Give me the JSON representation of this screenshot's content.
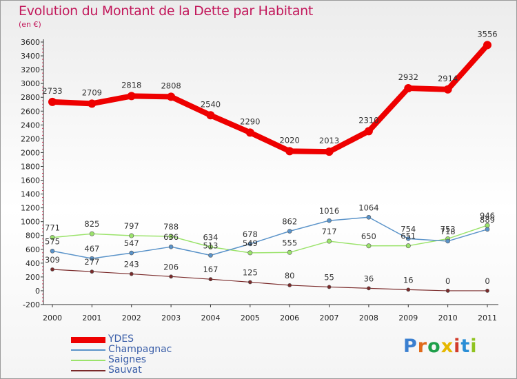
{
  "title": "Evolution du Montant de la Dette par Habitant",
  "subtitle": "(en €)",
  "logo": {
    "text": "Proxiti",
    "colors": [
      "#3a7fd0",
      "#e06a1a",
      "#1f9f4a",
      "#e6b800",
      "#d23b2a",
      "#2a8ed6",
      "#8fc31f"
    ]
  },
  "chart_data": {
    "type": "line",
    "x": [
      "2000",
      "2001",
      "2002",
      "2003",
      "2004",
      "2005",
      "2006",
      "2007",
      "2008",
      "2009",
      "2010",
      "2011"
    ],
    "ylim": [
      -200,
      3600
    ],
    "yticks": [
      -200,
      0,
      200,
      400,
      600,
      800,
      1000,
      1200,
      1400,
      1600,
      1800,
      2000,
      2200,
      2400,
      2600,
      2800,
      3000,
      3200,
      3400,
      3600
    ],
    "grid": false,
    "legend_position": "bottom-left",
    "series": [
      {
        "name": "YDES",
        "color": "#ee0000",
        "values": [
          2733,
          2709,
          2818,
          2808,
          2540,
          2290,
          2020,
          2013,
          2310,
          2932,
          2914,
          3556
        ]
      },
      {
        "name": "Champagnac",
        "color": "#5a93c9",
        "values": [
          575,
          467,
          547,
          636,
          513,
          678,
          862,
          1016,
          1064,
          754,
          718,
          889
        ]
      },
      {
        "name": "Saignes",
        "color": "#9be36b",
        "values": [
          771,
          825,
          797,
          788,
          634,
          549,
          555,
          717,
          650,
          651,
          753,
          946
        ]
      },
      {
        "name": "Sauvat",
        "color": "#7a2a2a",
        "values": [
          309,
          277,
          243,
          206,
          167,
          125,
          80,
          55,
          36,
          16,
          0,
          0
        ]
      }
    ]
  }
}
